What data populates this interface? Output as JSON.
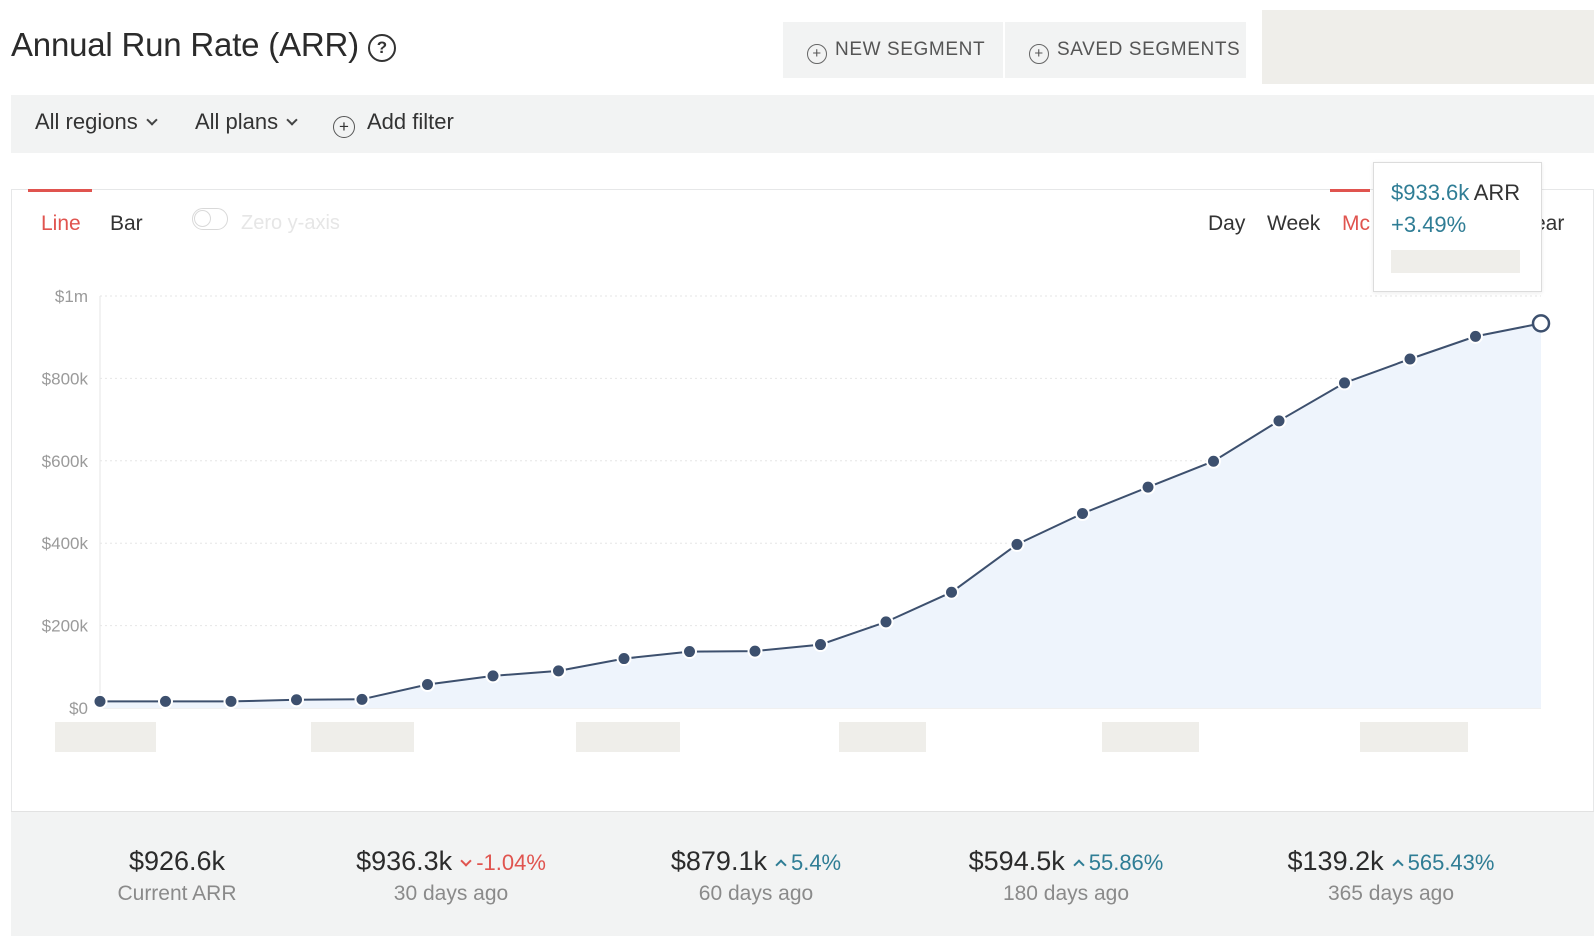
{
  "header": {
    "title": "Annual Run Rate (ARR)",
    "help_symbol": "?",
    "new_segment_label": "NEW SEGMENT",
    "saved_segments_label": "SAVED SEGMENTS"
  },
  "filters": {
    "regions_label": "All regions",
    "plans_label": "All plans",
    "add_filter_label": "Add filter"
  },
  "chart_controls": {
    "line_label": "Line",
    "bar_label": "Bar",
    "zero_axis_label": "Zero y-axis",
    "day_label": "Day",
    "week_label": "Week",
    "month_label_visible": "Mc",
    "year_label_visible": "ear"
  },
  "tooltip": {
    "value": "$933.6k",
    "unit": "ARR",
    "change": "+3.49%"
  },
  "chart_data": {
    "type": "area",
    "title": "",
    "xlabel": "",
    "ylabel": "",
    "y_ticks": [
      "$0",
      "$200k",
      "$400k",
      "$600k",
      "$800k",
      "$1m"
    ],
    "y_tick_values": [
      0,
      200,
      400,
      600,
      800,
      1000
    ],
    "ylim": [
      0,
      1000
    ],
    "y_unit": "thousands of dollars",
    "grid": true,
    "x_index": [
      0,
      1,
      2,
      3,
      4,
      5,
      6,
      7,
      8,
      9,
      10,
      11,
      12,
      13,
      14,
      15,
      16,
      17,
      18,
      19,
      20,
      21,
      22
    ],
    "values": [
      16,
      16,
      16,
      20,
      21,
      57,
      78,
      90,
      120,
      137,
      138,
      154,
      209,
      281,
      397,
      472,
      536,
      599,
      697,
      789,
      847,
      902,
      933.6
    ],
    "highlighted_index": 22,
    "line_color": "#3d506e",
    "area_color": "#eef4fc"
  },
  "stats": [
    {
      "value": "$926.6k",
      "delta": "",
      "direction": "",
      "caption": "Current ARR"
    },
    {
      "value": "$936.3k",
      "delta": "-1.04%",
      "direction": "down",
      "caption": "30 days ago"
    },
    {
      "value": "$879.1k",
      "delta": "5.4%",
      "direction": "up",
      "caption": "60 days ago"
    },
    {
      "value": "$594.5k",
      "delta": "55.86%",
      "direction": "up",
      "caption": "180 days ago"
    },
    {
      "value": "$139.2k",
      "delta": "565.43%",
      "direction": "up",
      "caption": "365 days ago"
    }
  ]
}
